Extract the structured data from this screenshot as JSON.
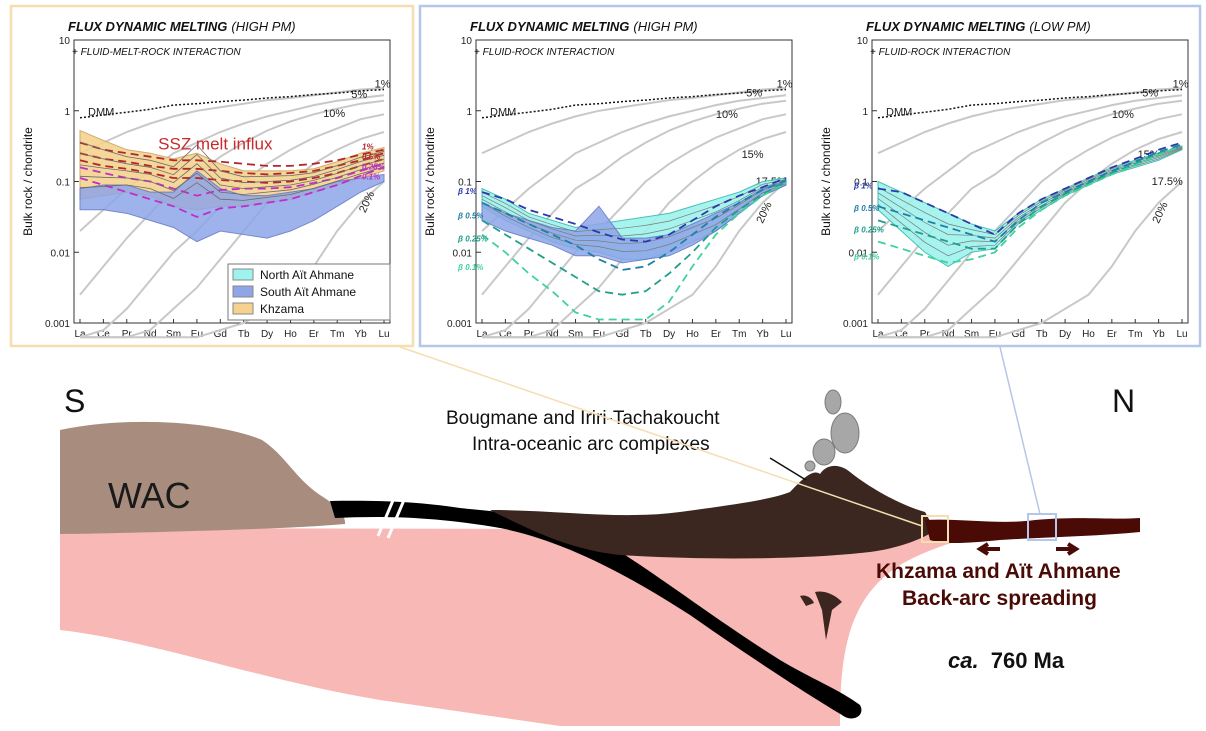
{
  "colors": {
    "left_frame": "#f5deb0",
    "right_frame": "#b6c6ea",
    "wac": "#a88c7d",
    "slab": "#000000",
    "arc_crust": "#3b2720",
    "backarc": "#4a0b06",
    "mantle": "#f8b8b5",
    "north_ait_ahmane": "#9ef3ee",
    "south_ait_ahmane": "#8ea5e8",
    "khzama": "#f5d38e"
  },
  "panels": [
    {
      "id": "left",
      "title_main": "FLUX DYNAMIC MELTING",
      "title_paren": "(HIGH PM)",
      "subtitle": "+ FLUID-MELT-ROCK INTERACTION",
      "ylabel": "Bulk rock / chondrite",
      "dmm_label": "DMM",
      "percent_labels": [
        "1%",
        "5%",
        "10%",
        "20%"
      ],
      "annotation": "SSZ melt influx",
      "beta_labels": [
        "1%",
        "0.5%",
        "0.25%",
        "0.1%"
      ]
    },
    {
      "id": "middle",
      "title_main": "FLUX DYNAMIC MELTING",
      "title_paren": "(HIGH PM)",
      "subtitle": "+ FLUID-ROCK INTERACTION",
      "ylabel": "Bulk rock / chondrite",
      "dmm_label": "DMM",
      "percent_labels": [
        "1%",
        "5%",
        "10%",
        "15%",
        "17.5%",
        "20%"
      ],
      "beta_labels": [
        "β 1%",
        "β 0.5%",
        "β 0.25%",
        "β 0.1%"
      ]
    },
    {
      "id": "right",
      "title_main": "FLUX DYNAMIC MELTING",
      "title_paren": "(LOW PM)",
      "subtitle": "+ FLUID-ROCK INTERACTION",
      "ylabel": "Bulk rock / chondrite",
      "dmm_label": "DMM",
      "percent_labels": [
        "1%",
        "5%",
        "10%",
        "15%",
        "17.5%",
        "20%"
      ],
      "beta_labels": [
        "β 1%",
        "β 0.5%",
        "β 0.25%",
        "β 0.1%"
      ]
    }
  ],
  "axis": {
    "x_ticks": [
      "La",
      "Ce",
      "Pr",
      "Nd",
      "Sm",
      "Eu",
      "Gd",
      "Tb",
      "Dy",
      "Ho",
      "Er",
      "Tm",
      "Yb",
      "Lu"
    ],
    "y_ticks": [
      "10",
      "1",
      "0.1",
      "0.01",
      "0.001"
    ]
  },
  "legend": [
    "North Aït Ahmane",
    "South Aït Ahmane",
    "Khzama"
  ],
  "section": {
    "south": "S",
    "north": "N",
    "wac": "WAC",
    "arc_line1": "Bougmane and Iriri-Tachakoucht",
    "arc_line2": "Intra-oceanic arc complexes",
    "backarc_line1": "Khzama and Aït Ahmane",
    "backarc_line2": "Back-arc spreading",
    "age_prefix": "ca.",
    "age_value": "760 Ma"
  }
}
